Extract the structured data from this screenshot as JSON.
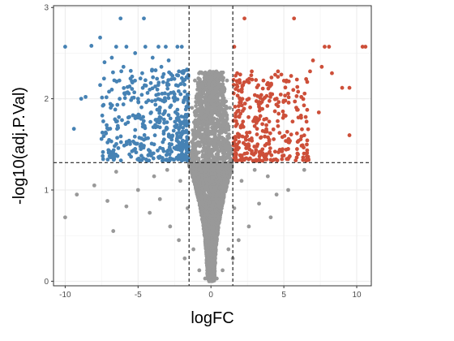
{
  "chart_data": {
    "type": "scatter",
    "title": "",
    "xlabel": "logFC",
    "ylabel": "-log10(adj.P.Val)",
    "xlim": [
      -10.8,
      11
    ],
    "ylim": [
      -0.05,
      3.02
    ],
    "x_ticks": [
      -10,
      -5,
      0,
      5,
      10
    ],
    "x_tick_labels": [
      "-10",
      "-5",
      "0",
      "5",
      "10"
    ],
    "y_ticks": [
      0,
      1,
      2,
      3
    ],
    "y_tick_labels": [
      "0",
      "1",
      "2",
      "3"
    ],
    "grid": true,
    "legend": "none",
    "thresholds": {
      "logFC": [
        -1.5,
        1.5
      ],
      "neg_log10_adj_p": 1.3
    },
    "colors": {
      "down": "#4682B4",
      "up": "#CD4F39",
      "not_significant": "#999999"
    },
    "series": [
      {
        "name": "",
        "group": "down",
        "points": [
          [
            -10,
            2.57
          ],
          [
            -8.2,
            2.58
          ],
          [
            -7.6,
            2.67
          ],
          [
            -6.2,
            2.88
          ],
          [
            -4.6,
            2.88
          ],
          [
            -6.5,
            2.57
          ],
          [
            -5.8,
            2.57
          ],
          [
            -4.5,
            2.57
          ],
          [
            -3.6,
            2.57
          ],
          [
            -3.1,
            2.57
          ],
          [
            -2.3,
            2.57
          ],
          [
            -2.0,
            2.57
          ],
          [
            -9.4,
            1.67
          ],
          [
            -8.9,
            2.0
          ],
          [
            -8.6,
            2.02
          ],
          [
            -7.6,
            2.15
          ],
          [
            -7.3,
            2.4
          ],
          [
            -6.8,
            2.45
          ],
          [
            -6.0,
            2.35
          ],
          [
            -5.2,
            2.5
          ],
          [
            -4.0,
            2.45
          ],
          [
            -3.4,
            2.35
          ],
          [
            -2.9,
            2.42
          ],
          [
            -2.2,
            2.3
          ],
          [
            -1.9,
            2.28
          ],
          [
            -6.8,
            2.1
          ],
          [
            -5.9,
            2.05
          ],
          [
            -5.0,
            2.0
          ],
          [
            -4.2,
            2.1
          ],
          [
            -3.6,
            2.05
          ],
          [
            -3.0,
            2.15
          ],
          [
            -2.5,
            2.05
          ],
          [
            -1.8,
            2.08
          ],
          [
            -7.2,
            1.62
          ],
          [
            -6.5,
            1.75
          ],
          [
            -5.6,
            1.8
          ],
          [
            -4.8,
            1.78
          ],
          [
            -4.1,
            1.85
          ],
          [
            -3.5,
            1.9
          ],
          [
            -2.9,
            1.82
          ],
          [
            -2.3,
            1.88
          ],
          [
            -1.8,
            1.75
          ],
          [
            -5.8,
            1.5
          ],
          [
            -5.2,
            1.45
          ],
          [
            -4.6,
            1.55
          ],
          [
            -3.9,
            1.5
          ],
          [
            -3.3,
            1.45
          ],
          [
            -2.7,
            1.5
          ],
          [
            -2.1,
            1.48
          ],
          [
            -1.7,
            1.45
          ],
          [
            -4.3,
            1.38
          ],
          [
            -3.6,
            1.36
          ],
          [
            -2.8,
            1.35
          ],
          [
            -2.2,
            1.38
          ],
          [
            -1.6,
            1.36
          ]
        ]
      },
      {
        "name": "",
        "group": "up",
        "points": [
          [
            2.3,
            2.88
          ],
          [
            5.7,
            2.88
          ],
          [
            1.6,
            2.57
          ],
          [
            7.8,
            2.57
          ],
          [
            8.1,
            2.57
          ],
          [
            10.4,
            2.57
          ],
          [
            10.6,
            2.57
          ],
          [
            7.0,
            2.42
          ],
          [
            6.8,
            2.3
          ],
          [
            7.6,
            2.35
          ],
          [
            8.3,
            2.28
          ],
          [
            9.0,
            2.12
          ],
          [
            9.5,
            2.12
          ],
          [
            5.5,
            2.25
          ],
          [
            4.6,
            2.3
          ],
          [
            3.6,
            2.2
          ],
          [
            2.8,
            2.3
          ],
          [
            2.2,
            2.15
          ],
          [
            1.8,
            2.28
          ],
          [
            6.2,
            2.02
          ],
          [
            5.1,
            1.98
          ],
          [
            4.2,
            2.05
          ],
          [
            3.4,
            1.95
          ],
          [
            2.6,
            2.0
          ],
          [
            1.9,
            1.92
          ],
          [
            7.4,
            1.85
          ],
          [
            6.5,
            1.8
          ],
          [
            5.6,
            1.75
          ],
          [
            4.6,
            1.7
          ],
          [
            3.8,
            1.78
          ],
          [
            3.0,
            1.7
          ],
          [
            2.2,
            1.75
          ],
          [
            1.7,
            1.7
          ],
          [
            9.5,
            1.6
          ],
          [
            5.9,
            1.62
          ],
          [
            4.9,
            1.58
          ],
          [
            4.0,
            1.55
          ],
          [
            3.2,
            1.5
          ],
          [
            2.4,
            1.55
          ],
          [
            1.8,
            1.5
          ],
          [
            5.3,
            1.45
          ],
          [
            4.4,
            1.42
          ],
          [
            3.6,
            1.38
          ],
          [
            2.8,
            1.4
          ],
          [
            2.0,
            1.38
          ],
          [
            1.6,
            1.35
          ],
          [
            5.2,
            1.34
          ],
          [
            4.1,
            1.33
          ],
          [
            3.1,
            1.33
          ],
          [
            2.3,
            1.34
          ]
        ]
      },
      {
        "name": "",
        "group": "not_significant",
        "points": [
          [
            -10,
            0.7
          ],
          [
            -9.2,
            0.95
          ],
          [
            -8.0,
            1.05
          ],
          [
            -7.1,
            0.88
          ],
          [
            -6.5,
            1.2
          ],
          [
            -5.8,
            0.82
          ],
          [
            -5.0,
            1.0
          ],
          [
            -4.2,
            0.75
          ],
          [
            -3.5,
            0.9
          ],
          [
            -2.8,
            0.6
          ],
          [
            -2.2,
            0.45
          ],
          [
            -1.8,
            0.25
          ],
          [
            -6.7,
            0.55
          ],
          [
            -3.9,
            1.15
          ],
          [
            -3.0,
            1.22
          ],
          [
            -2.1,
            1.1
          ],
          [
            -1.6,
            0.8
          ],
          [
            -1.2,
            0.35
          ],
          [
            -0.8,
            0.12
          ],
          [
            -0.4,
            0.03
          ],
          [
            0.4,
            0.03
          ],
          [
            0.8,
            0.12
          ],
          [
            1.2,
            0.35
          ],
          [
            1.6,
            0.8
          ],
          [
            2.1,
            1.1
          ],
          [
            3.0,
            1.22
          ],
          [
            3.9,
            1.15
          ],
          [
            4.5,
            0.95
          ],
          [
            5.3,
            1.0
          ],
          [
            6.4,
            1.22
          ],
          [
            2.6,
            0.6
          ],
          [
            3.3,
            0.85
          ],
          [
            4.1,
            0.7
          ],
          [
            1.9,
            0.45
          ],
          [
            1.5,
            0.25
          ],
          [
            -1.3,
            1.9
          ],
          [
            -1.1,
            2.2
          ],
          [
            1.1,
            2.2
          ],
          [
            1.3,
            1.9
          ],
          [
            -0.3,
            0.2
          ],
          [
            0.3,
            0.2
          ]
        ]
      }
    ]
  }
}
